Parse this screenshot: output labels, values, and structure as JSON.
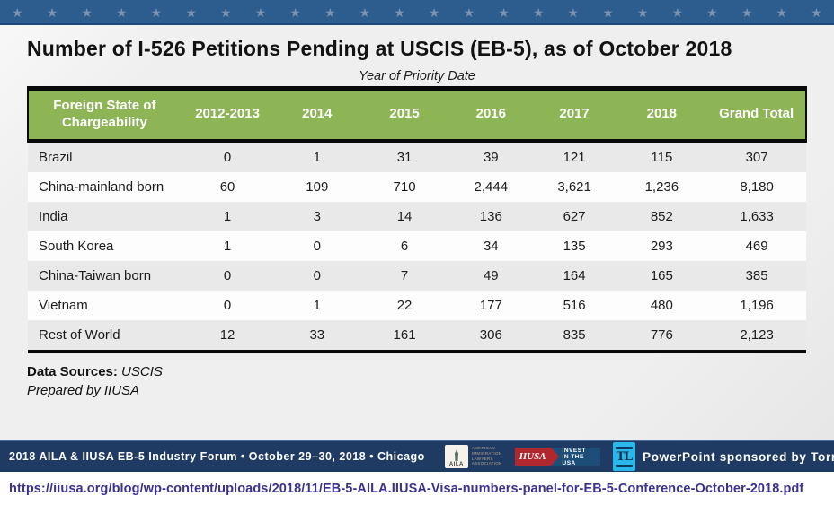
{
  "banner": {
    "star": "★",
    "star_count": 24
  },
  "title": "Number of I-526 Petitions Pending at USCIS (EB-5), as of October 2018",
  "table": {
    "caption": "Year of Priority Date",
    "columns": [
      "Foreign State of Chargeability",
      "2012-2013",
      "2014",
      "2015",
      "2016",
      "2017",
      "2018",
      "Grand Total"
    ],
    "rows": [
      {
        "label": "Brazil",
        "values": [
          "0",
          "1",
          "31",
          "39",
          "121",
          "115",
          "307"
        ]
      },
      {
        "label": "China-mainland born",
        "values": [
          "60",
          "109",
          "710",
          "2,444",
          "3,621",
          "1,236",
          "8,180"
        ]
      },
      {
        "label": "India",
        "values": [
          "1",
          "3",
          "14",
          "136",
          "627",
          "852",
          "1,633"
        ]
      },
      {
        "label": "South Korea",
        "values": [
          "1",
          "0",
          "6",
          "34",
          "135",
          "293",
          "469"
        ]
      },
      {
        "label": "China-Taiwan born",
        "values": [
          "0",
          "0",
          "7",
          "49",
          "164",
          "165",
          "385"
        ]
      },
      {
        "label": "Vietnam",
        "values": [
          "0",
          "1",
          "22",
          "177",
          "516",
          "480",
          "1,196"
        ]
      },
      {
        "label": "Rest of World",
        "values": [
          "12",
          "33",
          "161",
          "306",
          "835",
          "776",
          "2,123"
        ]
      }
    ]
  },
  "notes": {
    "data_sources_label": "Data Sources:",
    "data_sources_value": " USCIS",
    "prepared_by": "Prepared by IIUSA"
  },
  "footer": {
    "event_line": "2018 AILA & IIUSA EB-5 Industry Forum  •  October 29–30, 2018  •  Chicago",
    "sponsor_text": "PowerPoint sponsored by Torres Law",
    "logos": {
      "aila_abbr": "AILA",
      "aila_lines": [
        "AMERICAN",
        "IMMIGRATION",
        "LAWYERS",
        "ASSOCIATION"
      ],
      "iiusa_abbr": "IIUSA",
      "iiusa_tagline": "INVEST IN THE USA",
      "torres_monogram": "TL"
    }
  },
  "link": {
    "url": "https://iiusa.org/blog/wp-content/uploads/2018/11/EB-5-AILA.IIUSA-Visa-numbers-panel-for-EB-5-Conference-October-2018.pdf"
  },
  "colors": {
    "banner_blue": "#2d5c8e",
    "star_blue": "#7b92b0",
    "header_green": "#8db455",
    "row_gray": "#e9e9e9",
    "footer_navy": "#1f3a63",
    "url_purple": "#3a3191",
    "iiusa_red": "#b0272e",
    "iiusa_blue": "#1d4e79",
    "torres_cyan": "#2ab7ea"
  }
}
